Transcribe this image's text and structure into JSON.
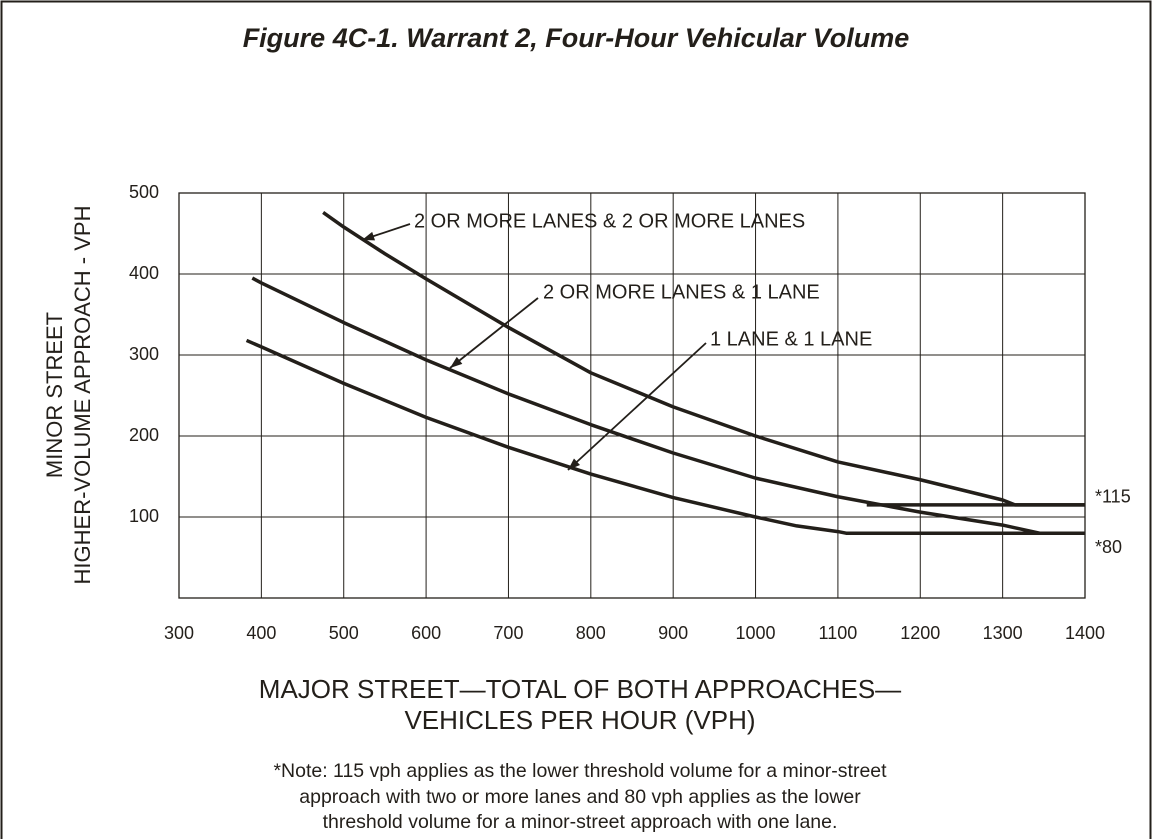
{
  "chart_data": {
    "type": "line",
    "title": "Figure 4C-1.  Warrant 2, Four-Hour Vehicular Volume",
    "y_label": [
      "MINOR STREET",
      "HIGHER-VOLUME APPROACH - VPH"
    ],
    "x_label": [
      "MAJOR STREET—TOTAL OF BOTH APPROACHES—",
      "VEHICLES PER HOUR (VPH)"
    ],
    "note": [
      "*Note: 115 vph applies as the lower threshold volume for a minor-street",
      "approach with two or more lanes and 80 vph applies as the lower",
      "threshold volume for a minor-street approach with one lane."
    ],
    "xlim": [
      300,
      1400
    ],
    "ylim": [
      0,
      500
    ],
    "xticks": [
      300,
      400,
      500,
      600,
      700,
      800,
      900,
      1000,
      1100,
      1200,
      1300,
      1400
    ],
    "yticks": [
      100,
      200,
      300,
      400,
      500
    ],
    "grid": true,
    "series": [
      {
        "name": "2 OR MORE LANES & 2 OR MORE LANES",
        "color": "#231f1a",
        "x": [
          475,
          500,
          550,
          600,
          700,
          800,
          900,
          1000,
          1100,
          1200,
          1300,
          1315,
          1400
        ],
        "values": [
          476,
          458,
          425,
          394,
          334,
          278,
          236,
          200,
          168,
          146,
          121,
          115,
          115
        ]
      },
      {
        "name": "2 OR MORE LANES & 1 LANE",
        "color": "#231f1a",
        "x": [
          389,
          400,
          500,
          600,
          700,
          800,
          900,
          1000,
          1100,
          1200,
          1300,
          1345,
          1400
        ],
        "values": [
          395,
          389,
          340,
          294,
          252,
          214,
          179,
          148,
          125,
          106,
          90,
          80,
          80
        ]
      },
      {
        "name": "1 LANE & 1 LANE",
        "color": "#231f1a",
        "x": [
          382,
          400,
          500,
          600,
          700,
          800,
          900,
          1000,
          1050,
          1100,
          1110,
          1400
        ],
        "values": [
          318,
          310,
          265,
          223,
          186,
          153,
          124,
          100,
          89,
          82,
          80,
          80
        ]
      }
    ],
    "thresholds": [
      {
        "label": "*115",
        "value": 115,
        "x": [
          1135,
          1400
        ]
      },
      {
        "label": "*80",
        "value": 80,
        "x": [
          1110,
          1400
        ]
      }
    ]
  }
}
